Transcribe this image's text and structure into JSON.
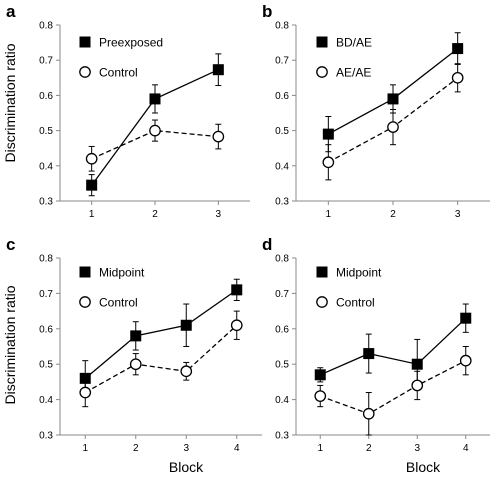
{
  "figure": {
    "shared_ylabel": "Discrimination ratio",
    "shared_xlabel": "Block"
  },
  "chart_data": [
    {
      "panel": "a",
      "type": "line",
      "x": [
        1,
        2,
        3
      ],
      "xlim": [
        0.5,
        3.5
      ],
      "ylim": [
        0.3,
        0.8
      ],
      "yticks": [
        0.3,
        0.4,
        0.5,
        0.6,
        0.7,
        0.8
      ],
      "grid": false,
      "legend_position": "top-left",
      "series": [
        {
          "name": "Preexposed",
          "marker": "filled-square",
          "line": "solid",
          "values": [
            0.345,
            0.59,
            0.673
          ],
          "errors": [
            0.03,
            0.04,
            0.045
          ]
        },
        {
          "name": "Control",
          "marker": "open-circle",
          "line": "dashed",
          "values": [
            0.42,
            0.5,
            0.483
          ],
          "errors": [
            0.035,
            0.03,
            0.035
          ]
        }
      ]
    },
    {
      "panel": "b",
      "type": "line",
      "x": [
        1,
        2,
        3
      ],
      "xlim": [
        0.5,
        3.5
      ],
      "ylim": [
        0.3,
        0.8
      ],
      "yticks": [
        0.3,
        0.4,
        0.5,
        0.6,
        0.7,
        0.8
      ],
      "grid": false,
      "legend_position": "top-left",
      "series": [
        {
          "name": "BD/AE",
          "marker": "filled-square",
          "line": "solid",
          "values": [
            0.49,
            0.59,
            0.733
          ],
          "errors": [
            0.05,
            0.04,
            0.045
          ]
        },
        {
          "name": "AE/AE",
          "marker": "open-circle",
          "line": "dashed",
          "values": [
            0.41,
            0.51,
            0.65
          ],
          "errors": [
            0.05,
            0.05,
            0.04
          ]
        }
      ]
    },
    {
      "panel": "c",
      "type": "line",
      "x": [
        1,
        2,
        3,
        4
      ],
      "xlim": [
        0.5,
        4.5
      ],
      "ylim": [
        0.3,
        0.8
      ],
      "yticks": [
        0.3,
        0.4,
        0.5,
        0.6,
        0.7,
        0.8
      ],
      "grid": false,
      "legend_position": "top-left",
      "series": [
        {
          "name": "Midpoint",
          "marker": "filled-square",
          "line": "solid",
          "values": [
            0.46,
            0.58,
            0.61,
            0.71
          ],
          "errors": [
            0.05,
            0.04,
            0.06,
            0.03
          ]
        },
        {
          "name": "Control",
          "marker": "open-circle",
          "line": "dashed",
          "values": [
            0.42,
            0.5,
            0.48,
            0.61
          ],
          "errors": [
            0.04,
            0.03,
            0.025,
            0.04
          ]
        }
      ]
    },
    {
      "panel": "d",
      "type": "line",
      "x": [
        1,
        2,
        3,
        4
      ],
      "xlim": [
        0.5,
        4.5
      ],
      "ylim": [
        0.3,
        0.8
      ],
      "yticks": [
        0.3,
        0.4,
        0.5,
        0.6,
        0.7,
        0.8
      ],
      "grid": false,
      "legend_position": "top-left",
      "series": [
        {
          "name": "Midpoint",
          "marker": "filled-square",
          "line": "solid",
          "values": [
            0.47,
            0.53,
            0.5,
            0.63
          ],
          "errors": [
            0.02,
            0.055,
            0.07,
            0.04
          ]
        },
        {
          "name": "Control",
          "marker": "open-circle",
          "line": "dashed",
          "values": [
            0.41,
            0.36,
            0.44,
            0.51
          ],
          "errors": [
            0.03,
            0.06,
            0.04,
            0.04
          ]
        }
      ]
    }
  ],
  "colors": {
    "ink": "#000000",
    "marker_fill_open": "#ffffff",
    "axis": "#888888"
  }
}
